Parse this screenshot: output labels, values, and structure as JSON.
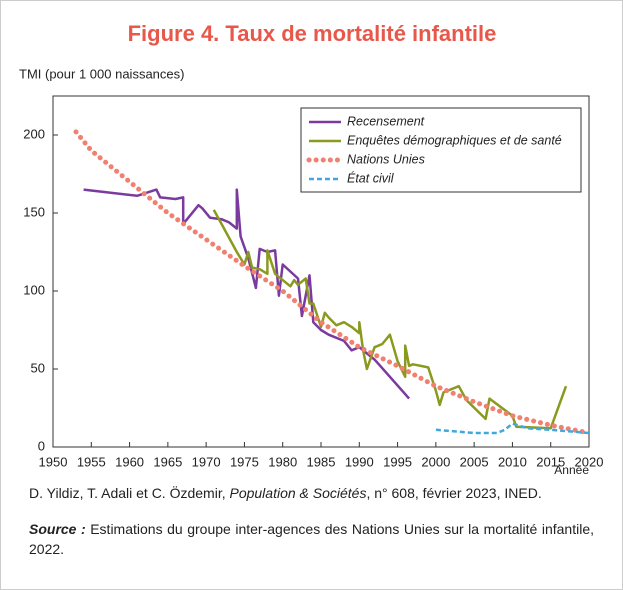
{
  "chart_data": {
    "type": "line",
    "title": "Figure 4. Taux de mortalité infantile",
    "y_label": "TMI (pour 1 000 naissances)",
    "x_label": "Année",
    "xlim": [
      1950,
      2020
    ],
    "xticks": [
      1950,
      1955,
      1960,
      1965,
      1970,
      1975,
      1980,
      1985,
      1990,
      1995,
      2000,
      2005,
      2010,
      2015,
      2020
    ],
    "ylim": [
      0,
      225
    ],
    "yticks": [
      0,
      50,
      100,
      150,
      200
    ],
    "legend": "upper right",
    "series": [
      {
        "name": "Recensement",
        "color": "#7b3a9e",
        "style": "solid",
        "x": [
          1954,
          1961,
          1963.5,
          1964,
          1966,
          1967,
          1967,
          1969,
          1969.5,
          1970.5,
          1972,
          1973,
          1974,
          1974,
          1974.5,
          1975.5,
          1976.5,
          1977,
          1978,
          1979,
          1979.5,
          1980,
          1982,
          1982.5,
          1983.5,
          1984,
          1985,
          1986,
          1988,
          1989,
          1990,
          1991,
          1992,
          1994,
          1996.5
        ],
        "values": [
          165,
          161,
          165,
          160,
          159,
          160,
          143,
          155,
          153,
          147,
          146,
          144,
          140,
          165,
          135,
          121,
          102,
          127,
          125,
          126,
          97,
          117,
          108,
          84,
          110,
          80,
          75,
          72,
          68,
          62,
          64,
          60,
          56,
          45,
          31
        ]
      },
      {
        "name": "Enquêtes démographiques et de santé",
        "color": "#8a9a1e",
        "style": "solid",
        "x": [
          1971,
          1972,
          1974,
          1975,
          1975.5,
          1976,
          1977,
          1978,
          1978,
          1979,
          1980,
          1981,
          1981.5,
          1982,
          1983,
          1983.5,
          1984,
          1985,
          1985.5,
          1986,
          1987,
          1988,
          1989,
          1990,
          1990,
          1990.5,
          1991,
          1992,
          1993,
          1994,
          1995,
          1996,
          1996,
          1996.5,
          1997,
          1999,
          2000,
          2000.5,
          2001,
          2003,
          2004,
          2006.5,
          2007,
          2010,
          2010.5,
          2015,
          2017
        ],
        "values": [
          152,
          143,
          125,
          117,
          125,
          115,
          114,
          111,
          126,
          111,
          107,
          103,
          107,
          104,
          108,
          92,
          92,
          77,
          86,
          83,
          78,
          80,
          77,
          73,
          80,
          62,
          50,
          64,
          66,
          72,
          55,
          45,
          65,
          52,
          53,
          51,
          36,
          27,
          35,
          39,
          30,
          18,
          31,
          20,
          13,
          12,
          39
        ]
      },
      {
        "name": "Nations Unies",
        "color": "#f08070",
        "style": "dotted",
        "x": [
          1953,
          1955,
          1960,
          1965,
          1970,
          1975,
          1980,
          1985,
          1990,
          1995,
          2000,
          2005,
          2010,
          2015,
          2020
        ],
        "values": [
          202,
          190,
          170,
          150,
          133,
          116,
          100,
          80,
          64,
          52,
          39,
          29,
          20,
          14,
          9
        ]
      },
      {
        "name": "État civil",
        "color": "#3fa9dd",
        "style": "dashed",
        "x": [
          2000,
          2005,
          2008,
          2009,
          2010,
          2012,
          2015,
          2020
        ],
        "values": [
          11,
          9,
          9,
          11,
          15,
          12,
          11,
          9
        ]
      }
    ]
  },
  "footer": {
    "authors": "D. Yildiz, T. Adali et C. Özdemir, ",
    "journal": "Population & Sociétés",
    "details": ", n° 608, février 2023, INED.",
    "source_label": "Source :",
    "source_text": " Estimations du groupe inter-agences des Nations Unies sur la mortalité infantile, 2022."
  }
}
